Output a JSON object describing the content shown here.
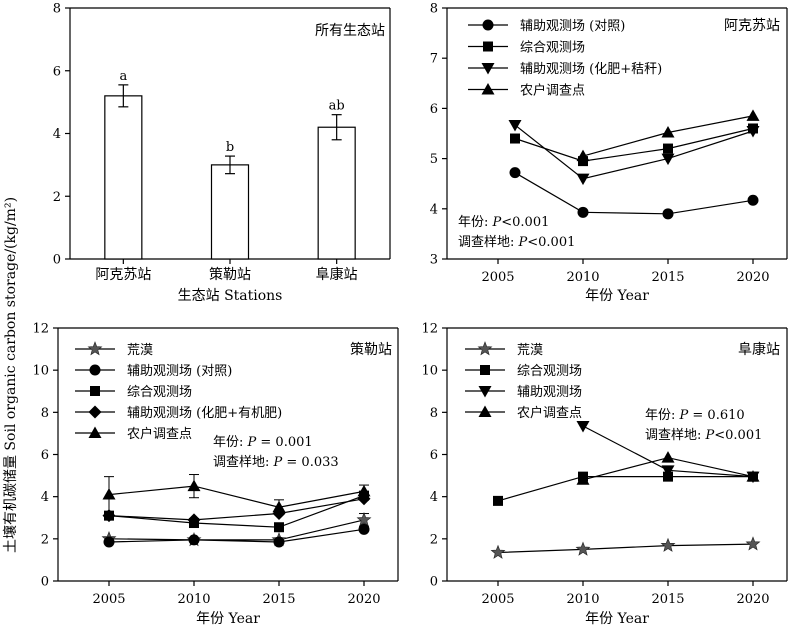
{
  "figure": {
    "shared_ylabel": "土壤有机碳储量 Soil organic carbon storage/(kg/m²)"
  },
  "chart_data": [
    {
      "type": "bar",
      "title": "所有生态站",
      "xlabel": "生态站 Stations",
      "ylim": [
        0,
        8
      ],
      "yticks": [
        0,
        2,
        4,
        6,
        8
      ],
      "categories": [
        "阿克苏站",
        "策勒站",
        "阜康站"
      ],
      "values": [
        5.2,
        3.0,
        4.2
      ],
      "errors": [
        0.35,
        0.28,
        0.4
      ],
      "letters": [
        "a",
        "b",
        "ab"
      ]
    },
    {
      "type": "line",
      "title": "阿克苏站",
      "xlabel": "年份 Year",
      "ylim": [
        3,
        8
      ],
      "yticks": [
        3,
        4,
        5,
        6,
        7,
        8
      ],
      "xlim": [
        2002,
        2022
      ],
      "xticks": [
        2005,
        2010,
        2015,
        2020
      ],
      "legend_position": "top-left",
      "annotations": [
        {
          "prefix": "年份: ",
          "p": "P",
          "rest": "<0.001"
        },
        {
          "prefix": "调查样地: ",
          "p": "P",
          "rest": "<0.001"
        }
      ],
      "series": [
        {
          "name": "辅助观测场 (对照)",
          "marker": "circle",
          "x": [
            2006,
            2010,
            2015,
            2020
          ],
          "y": [
            4.72,
            3.93,
            3.9,
            4.17
          ]
        },
        {
          "name": "综合观测场",
          "marker": "square",
          "x": [
            2006,
            2010,
            2015,
            2020
          ],
          "y": [
            5.4,
            4.95,
            5.2,
            5.6
          ]
        },
        {
          "name": "辅助观测场 (化肥+秸秆)",
          "marker": "triangle-down",
          "x": [
            2006,
            2010,
            2015,
            2020
          ],
          "y": [
            5.67,
            4.6,
            5.0,
            5.55
          ]
        },
        {
          "name": "农户调查点",
          "marker": "triangle-up",
          "x": [
            2010,
            2015,
            2020
          ],
          "y": [
            5.05,
            5.52,
            5.85
          ]
        }
      ]
    },
    {
      "type": "line",
      "title": "策勒站",
      "xlabel": "年份 Year",
      "ylim": [
        0,
        12
      ],
      "yticks": [
        0,
        2,
        4,
        6,
        8,
        10,
        12
      ],
      "xlim": [
        2002,
        2022
      ],
      "xticks": [
        2005,
        2010,
        2015,
        2020
      ],
      "legend_position": "top-left",
      "annotations": [
        {
          "prefix": "年份: ",
          "p": "P",
          "rest": " = 0.001"
        },
        {
          "prefix": "调查样地: ",
          "p": "P",
          "rest": " = 0.033"
        }
      ],
      "series": [
        {
          "name": "荒漠",
          "marker": "star",
          "x": [
            2005,
            2010,
            2015,
            2020
          ],
          "y": [
            2.0,
            1.95,
            1.95,
            2.9
          ],
          "err": [
            0,
            0,
            0,
            0.3
          ]
        },
        {
          "name": "辅助观测场 (对照)",
          "marker": "circle",
          "x": [
            2005,
            2010,
            2015,
            2020
          ],
          "y": [
            1.85,
            1.95,
            1.85,
            2.45
          ],
          "err": [
            0,
            0,
            0,
            0
          ]
        },
        {
          "name": "综合观测场",
          "marker": "square",
          "x": [
            2005,
            2010,
            2015,
            2020
          ],
          "y": [
            3.1,
            2.75,
            2.55,
            4.05
          ],
          "err": [
            0,
            0,
            0,
            0
          ]
        },
        {
          "name": "辅助观测场 (化肥+有机肥)",
          "marker": "diamond",
          "x": [
            2005,
            2010,
            2015,
            2020
          ],
          "y": [
            3.1,
            2.9,
            3.2,
            3.9
          ],
          "err": [
            0,
            0,
            0,
            0
          ]
        },
        {
          "name": "农户调查点",
          "marker": "triangle-up",
          "x": [
            2005,
            2010,
            2015,
            2020
          ],
          "y": [
            4.1,
            4.5,
            3.5,
            4.25
          ],
          "err": [
            0.85,
            0.55,
            0.35,
            0.3
          ]
        }
      ]
    },
    {
      "type": "line",
      "title": "阜康站",
      "xlabel": "年份 Year",
      "ylim": [
        0,
        12
      ],
      "yticks": [
        0,
        2,
        4,
        6,
        8,
        10,
        12
      ],
      "xlim": [
        2002,
        2022
      ],
      "xticks": [
        2005,
        2010,
        2015,
        2020
      ],
      "legend_position": "top-left",
      "annotations": [
        {
          "prefix": "年份: ",
          "p": "P",
          "rest": " = 0.610"
        },
        {
          "prefix": "调查样地: ",
          "p": "P",
          "rest": "<0.001"
        }
      ],
      "series": [
        {
          "name": "荒漠",
          "marker": "star",
          "x": [
            2005,
            2010,
            2015,
            2020
          ],
          "y": [
            1.35,
            1.5,
            1.68,
            1.75
          ]
        },
        {
          "name": "综合观测场",
          "marker": "square",
          "x": [
            2005,
            2010,
            2015,
            2020
          ],
          "y": [
            3.8,
            4.95,
            4.95,
            4.95
          ]
        },
        {
          "name": "辅助观测场",
          "marker": "triangle-down",
          "x": [
            2010,
            2015,
            2020
          ],
          "y": [
            7.35,
            5.25,
            4.95
          ]
        },
        {
          "name": "农户调查点",
          "marker": "triangle-up",
          "x": [
            2010,
            2015,
            2020
          ],
          "y": [
            4.8,
            5.85,
            4.95
          ]
        }
      ]
    }
  ]
}
